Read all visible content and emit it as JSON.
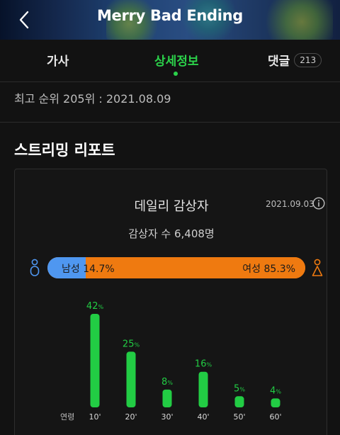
{
  "header": {
    "title": "Merry Bad Ending",
    "back_icon": "chevron-left-icon"
  },
  "tabs": [
    {
      "label": "가사",
      "active": false
    },
    {
      "label": "상세정보",
      "active": true
    },
    {
      "label": "댓글",
      "count": "213",
      "active": false
    }
  ],
  "peak_rank": "최고 순위 205위 : 2021.08.09",
  "report": {
    "section_title": "스트리밍 리포트",
    "card_title": "데일리 감상자",
    "date": "2021.09.03",
    "info_icon": "info-icon",
    "listeners": "감상자 수 6,408명",
    "gender": {
      "male_label": "남성",
      "male_value": "14.7%",
      "male_fraction": 0.147,
      "female_label": "여성",
      "female_value": "85.3%",
      "female_fraction": 0.853,
      "male_color": "#4f97f0",
      "female_color": "#ef7a10"
    }
  },
  "chart_data": {
    "type": "bar",
    "axis_label": "연령",
    "categories": [
      "10'",
      "20'",
      "30'",
      "40'",
      "50'",
      "60'"
    ],
    "values": [
      42,
      25,
      8,
      16,
      5,
      4
    ],
    "unit": "%",
    "color": "#22cc44"
  },
  "colors": {
    "accent": "#2bd24a",
    "background": "#121212"
  }
}
